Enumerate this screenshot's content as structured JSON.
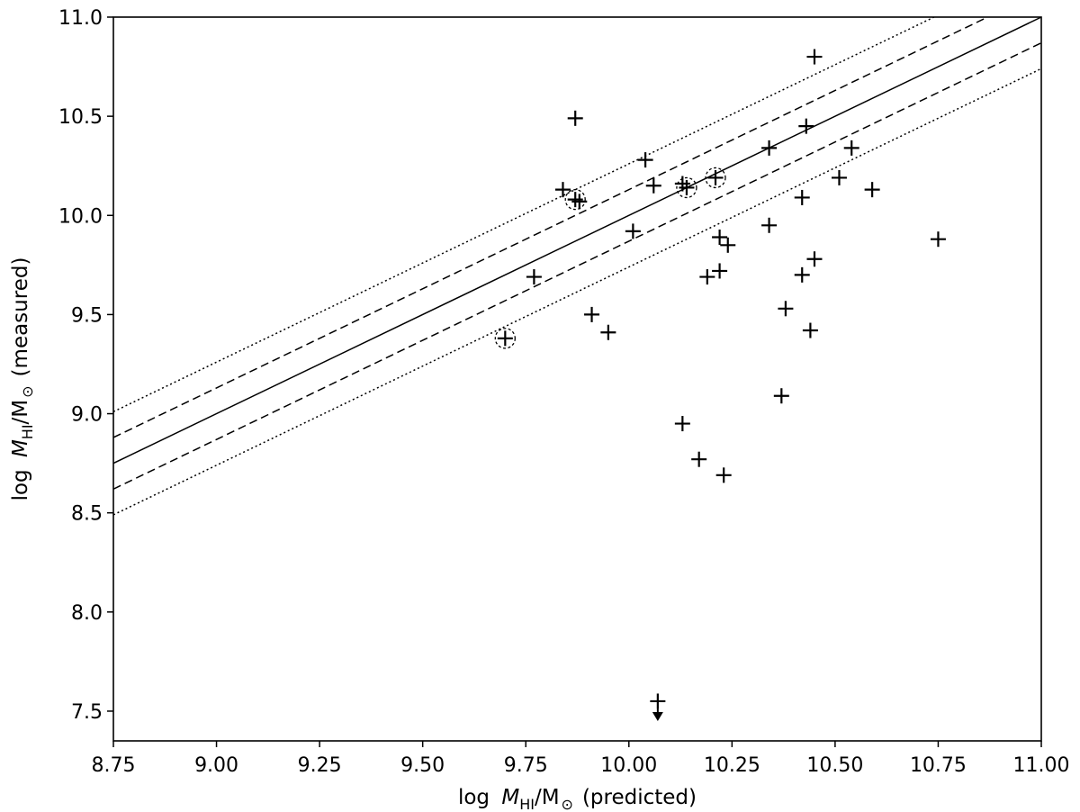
{
  "chart_data": {
    "type": "scatter",
    "xlabel": {
      "prefix": "log",
      "symbol": "M",
      "sub": "HI",
      "unit": "/M",
      "sunsym": "⊙",
      "suffix": "(predicted)"
    },
    "ylabel": {
      "prefix": "log",
      "symbol": "M",
      "sub": "HI",
      "unit": "/M",
      "sunsym": "⊙",
      "suffix": "(measured)"
    },
    "xlim": [
      8.75,
      11.0
    ],
    "ylim": [
      7.35,
      11.0
    ],
    "xticks": [
      "8.75",
      "9.00",
      "9.25",
      "9.50",
      "9.75",
      "10.00",
      "10.25",
      "10.50",
      "10.75",
      "11.00"
    ],
    "yticks": [
      "7.5",
      "8.0",
      "8.5",
      "9.0",
      "9.5",
      "10.0",
      "10.5",
      "11.0"
    ],
    "grid": false,
    "legend": "none",
    "reference_lines": [
      {
        "style": "solid",
        "offset": 0.0
      },
      {
        "style": "dashed",
        "offset": 0.13
      },
      {
        "style": "dashed",
        "offset": -0.13
      },
      {
        "style": "dotted",
        "offset": 0.26
      },
      {
        "style": "dotted",
        "offset": -0.26
      }
    ],
    "points": [
      {
        "x": 9.7,
        "y": 9.38,
        "circled": true
      },
      {
        "x": 9.77,
        "y": 9.69
      },
      {
        "x": 9.84,
        "y": 10.13
      },
      {
        "x": 9.87,
        "y": 10.08,
        "circled": true
      },
      {
        "x": 9.88,
        "y": 10.07
      },
      {
        "x": 9.87,
        "y": 10.49
      },
      {
        "x": 9.91,
        "y": 9.5
      },
      {
        "x": 9.95,
        "y": 9.41
      },
      {
        "x": 10.01,
        "y": 9.92
      },
      {
        "x": 10.04,
        "y": 10.28
      },
      {
        "x": 10.06,
        "y": 10.15
      },
      {
        "x": 10.07,
        "y": 7.55,
        "upper_limit": true
      },
      {
        "x": 10.13,
        "y": 10.16
      },
      {
        "x": 10.14,
        "y": 10.14,
        "circled": true
      },
      {
        "x": 10.13,
        "y": 8.95
      },
      {
        "x": 10.17,
        "y": 8.77
      },
      {
        "x": 10.19,
        "y": 9.69
      },
      {
        "x": 10.21,
        "y": 10.19,
        "circled": true
      },
      {
        "x": 10.22,
        "y": 9.89
      },
      {
        "x": 10.22,
        "y": 9.72
      },
      {
        "x": 10.23,
        "y": 8.69
      },
      {
        "x": 10.24,
        "y": 9.85
      },
      {
        "x": 10.34,
        "y": 10.34
      },
      {
        "x": 10.34,
        "y": 9.95
      },
      {
        "x": 10.37,
        "y": 9.09
      },
      {
        "x": 10.38,
        "y": 9.53
      },
      {
        "x": 10.42,
        "y": 10.09
      },
      {
        "x": 10.42,
        "y": 9.7
      },
      {
        "x": 10.43,
        "y": 10.45
      },
      {
        "x": 10.44,
        "y": 9.42
      },
      {
        "x": 10.45,
        "y": 10.8
      },
      {
        "x": 10.45,
        "y": 9.78
      },
      {
        "x": 10.51,
        "y": 10.19
      },
      {
        "x": 10.54,
        "y": 10.34
      },
      {
        "x": 10.59,
        "y": 10.13
      },
      {
        "x": 10.75,
        "y": 9.88
      }
    ]
  }
}
